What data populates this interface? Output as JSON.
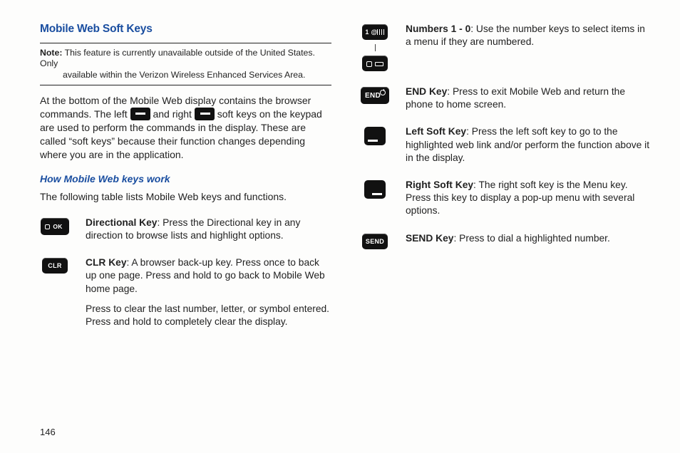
{
  "page_number": "146",
  "section_title": "Mobile Web Soft Keys",
  "note": {
    "label": "Note:",
    "line1": "This feature is currently unavailable outside of the United States. Only",
    "line2": "available within the Verizon Wireless Enhanced Services Area."
  },
  "intro": {
    "seg1": "At the bottom of the Mobile Web display contains the browser commands. The left ",
    "seg2": " and right ",
    "seg3": " soft keys on the keypad are used to perform the commands in the display. These are called “soft keys” because their function changes depending where you are in the application."
  },
  "subhead": "How Mobile Web keys work",
  "lead": "The following table lists Mobile Web keys and functions.",
  "keys": {
    "directional": {
      "name": "Directional Key",
      "desc": ": Press the Directional key in any direction to browse lists and highlight options.",
      "icon_label": "OK"
    },
    "clr": {
      "name": "CLR Key",
      "desc": ": A browser back-up key. Press once to back up one page. Press and hold to go back to Mobile Web home page.",
      "desc2": "Press to clear the last number, letter, or symbol entered. Press and hold to completely clear the display.",
      "icon_label": "CLR"
    },
    "numbers": {
      "name": "Numbers 1 - 0",
      "desc": ": Use the number keys to select items in a menu if they are numbered.",
      "icon_label_top": "1 @",
      "icon_label_bottom": ""
    },
    "end": {
      "name": "END Key",
      "desc": ": Press to exit Mobile Web and return the phone to home screen.",
      "icon_label": "END"
    },
    "leftsoft": {
      "name": "Left Soft Key",
      "desc": ": Press the left soft key to go to the highlighted web link and/or perform the function above it in the display."
    },
    "rightsoft": {
      "name": "Right Soft Key",
      "desc": ": The right soft key is the Menu key. Press this key to display a pop-up menu with several options."
    },
    "send": {
      "name": "SEND Key",
      "desc": ": Press to dial a highlighted number.",
      "icon_label": "SEND"
    }
  }
}
